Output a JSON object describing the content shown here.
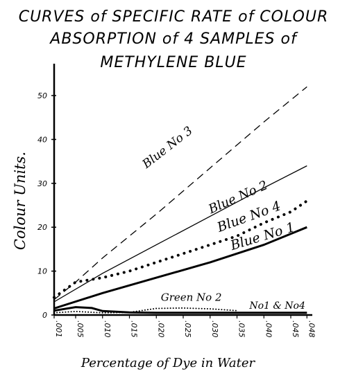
{
  "title_lines": [
    "CURVES of SPECIFIC RATE of COLOUR",
    "ABSORPTION of 4 SAMPLES of",
    "METHYLENE BLUE"
  ],
  "chart_data": {
    "type": "line",
    "title": "CURVES of SPECIFIC RATE of COLOUR ABSORPTION of 4 SAMPLES of METHYLENE BLUE",
    "xlabel": "Percentage of Dye in Water",
    "ylabel": "Colour Units.",
    "xlim": [
      0.001,
      0.049
    ],
    "ylim": [
      0,
      56
    ],
    "x_ticks": [
      ".001",
      ".005",
      ".010",
      ".015",
      ".020",
      ".025",
      ".030",
      ".035",
      ".040",
      ".045",
      ".048"
    ],
    "y_ticks": [
      "0",
      "10",
      "20",
      "30",
      "40",
      "50"
    ],
    "grid": false,
    "series": [
      {
        "name": "Blue No 3",
        "style": "dashed",
        "x": [
          0.001,
          0.005,
          0.01,
          0.02,
          0.03,
          0.04,
          0.048
        ],
        "y": [
          3.5,
          7.5,
          13,
          23,
          33.5,
          44,
          52
        ]
      },
      {
        "name": "Blue No 2",
        "style": "thin",
        "x": [
          0.001,
          0.01,
          0.02,
          0.03,
          0.04,
          0.048
        ],
        "y": [
          3,
          9.5,
          16,
          22.5,
          29,
          34
        ]
      },
      {
        "name": "Blue No 4",
        "style": "dotted",
        "x": [
          0.001,
          0.005,
          0.01,
          0.015,
          0.02,
          0.025,
          0.03,
          0.035,
          0.04,
          0.045,
          0.048
        ],
        "y": [
          4,
          7.5,
          8.5,
          10,
          12,
          14,
          16,
          18,
          21,
          23.5,
          26
        ]
      },
      {
        "name": "Blue No 1",
        "style": "thick",
        "x": [
          0.001,
          0.01,
          0.02,
          0.03,
          0.04,
          0.048
        ],
        "y": [
          1.5,
          5,
          8.5,
          12,
          16,
          20
        ]
      },
      {
        "name": "Green No 2",
        "style": "dotted",
        "x": [
          0.001,
          0.005,
          0.01,
          0.015,
          0.02,
          0.025,
          0.03,
          0.035
        ],
        "y": [
          0.5,
          0.8,
          0.5,
          0.6,
          1.5,
          1.6,
          1.4,
          1.0
        ]
      },
      {
        "name": "No1 & No4",
        "style": "thick",
        "x": [
          0.001,
          0.005,
          0.008,
          0.01,
          0.015,
          0.02,
          0.03,
          0.04,
          0.048
        ],
        "y": [
          1.0,
          1.8,
          1.6,
          0.9,
          0.6,
          0.5,
          0.5,
          0.5,
          0.5
        ]
      }
    ]
  }
}
